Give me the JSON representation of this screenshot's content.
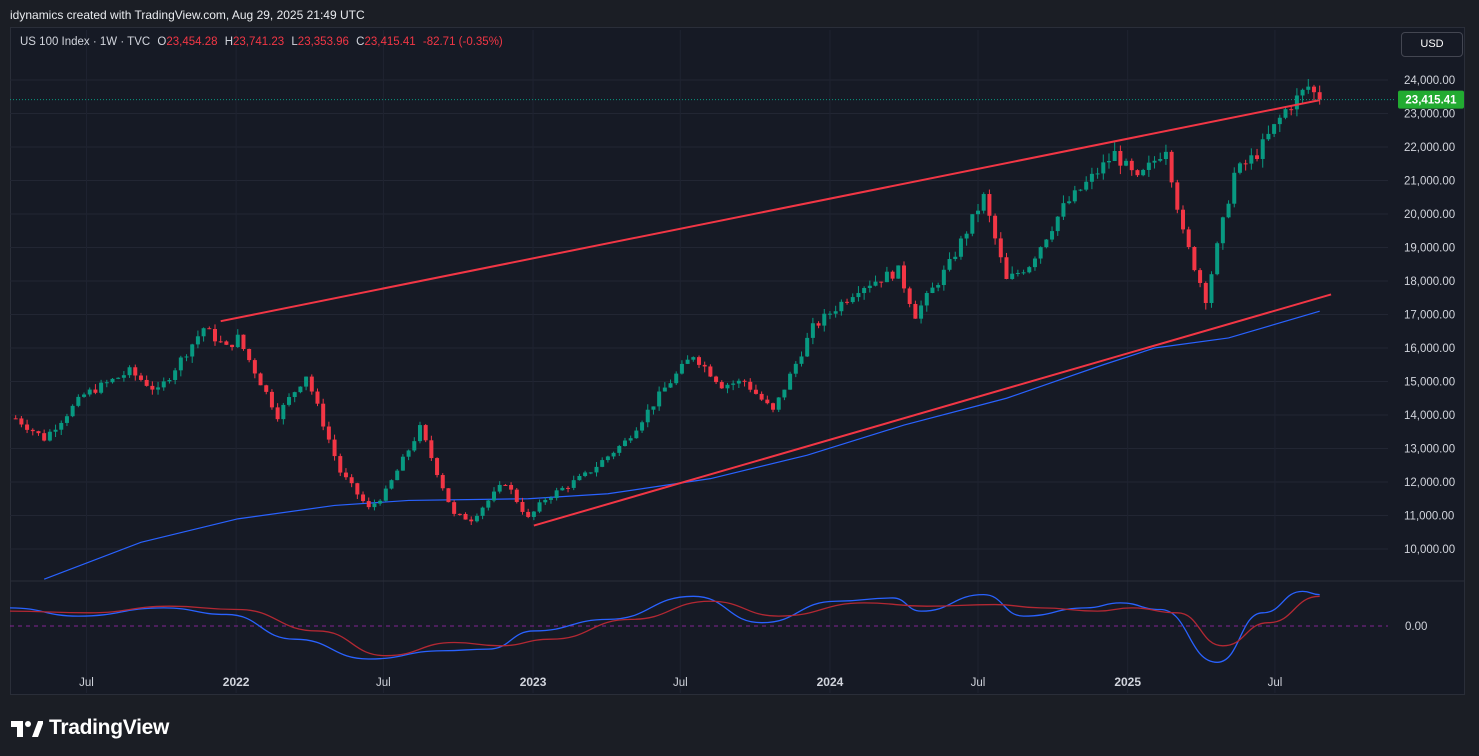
{
  "header": {
    "credit": "idynamics created with TradingView.com, Aug 29, 2025 21:49 UTC"
  },
  "legend": {
    "symbol": "US 100 Index · 1W · TVC",
    "open_label": "O",
    "open": "23,454.28",
    "high_label": "H",
    "high": "23,741.23",
    "low_label": "L",
    "low": "23,353.96",
    "close_label": "C",
    "close": "23,415.41",
    "change": "-82.71 (-0.35%)"
  },
  "currency": "USD",
  "last_price_tag": "23,415.41",
  "oscillator_zero_label": "0.00",
  "brand": "TradingView",
  "colors": {
    "up": "#089981",
    "down": "#f23645",
    "trendline": "#f23645",
    "ma": "#2962ff",
    "price_tag": "#089981",
    "osc_line1": "#2962ff",
    "osc_line2": "#b22833"
  },
  "chart_data": {
    "type": "candlestick",
    "interval": "1W",
    "y_ticks": [
      "24,000.00",
      "23,000.00",
      "22,000.00",
      "21,000.00",
      "20,000.00",
      "19,000.00",
      "18,000.00",
      "17,000.00",
      "16,000.00",
      "15,000.00",
      "14,000.00",
      "13,000.00",
      "12,000.00",
      "11,000.00",
      "10,000.00"
    ],
    "ylim": [
      9000,
      24500
    ],
    "x_ticks": [
      "Jul",
      "2022",
      "Jul",
      "2023",
      "Jul",
      "2024",
      "Jul",
      "2025",
      "Jul"
    ],
    "xlim": [
      "2021-03-29",
      "2025-11-17"
    ],
    "price_path": [
      [
        "2021-04-05",
        13900
      ],
      [
        "2021-05-10",
        13300
      ],
      [
        "2021-06-28",
        14600
      ],
      [
        "2021-08-23",
        15300
      ],
      [
        "2021-09-27",
        14700
      ],
      [
        "2021-11-22",
        16600
      ],
      [
        "2021-12-20",
        16000
      ],
      [
        "2022-01-03",
        16300
      ],
      [
        "2022-02-21",
        14000
      ],
      [
        "2022-03-28",
        15200
      ],
      [
        "2022-05-09",
        12300
      ],
      [
        "2022-06-13",
        11200
      ],
      [
        "2022-07-04",
        11700
      ],
      [
        "2022-08-15",
        13600
      ],
      [
        "2022-09-26",
        11000
      ],
      [
        "2022-10-17",
        10900
      ],
      [
        "2022-11-28",
        12000
      ],
      [
        "2022-12-26",
        10900
      ],
      [
        "2023-01-16",
        11500
      ],
      [
        "2023-03-06",
        12200
      ],
      [
        "2023-04-24",
        13200
      ],
      [
        "2023-06-12",
        14800
      ],
      [
        "2023-07-17",
        15800
      ],
      [
        "2023-08-21",
        14900
      ],
      [
        "2023-09-18",
        15000
      ],
      [
        "2023-10-23",
        14100
      ],
      [
        "2023-12-11",
        16600
      ],
      [
        "2024-02-05",
        17800
      ],
      [
        "2024-03-25",
        18300
      ],
      [
        "2024-04-15",
        17000
      ],
      [
        "2024-05-27",
        18500
      ],
      [
        "2024-07-08",
        20500
      ],
      [
        "2024-08-05",
        18000
      ],
      [
        "2024-09-02",
        18500
      ],
      [
        "2024-10-14",
        20200
      ],
      [
        "2024-12-16",
        21800
      ],
      [
        "2025-01-13",
        21000
      ],
      [
        "2025-02-17",
        22000
      ],
      [
        "2025-03-10",
        19400
      ],
      [
        "2025-04-07",
        17500
      ],
      [
        "2025-04-21",
        19000
      ],
      [
        "2025-05-12",
        21200
      ],
      [
        "2025-06-09",
        21800
      ],
      [
        "2025-07-14",
        23100
      ],
      [
        "2025-08-11",
        23800
      ],
      [
        "2025-08-25",
        23415.41
      ]
    ],
    "moving_average": [
      [
        "2021-05-10",
        9100
      ],
      [
        "2021-09-06",
        10200
      ],
      [
        "2022-01-03",
        10900
      ],
      [
        "2022-05-02",
        11300
      ],
      [
        "2022-08-01",
        11450
      ],
      [
        "2022-12-26",
        11500
      ],
      [
        "2023-04-03",
        11650
      ],
      [
        "2023-08-07",
        12100
      ],
      [
        "2023-12-04",
        12800
      ],
      [
        "2024-04-01",
        13700
      ],
      [
        "2024-08-05",
        14500
      ],
      [
        "2024-12-02",
        15500
      ],
      [
        "2025-02-03",
        16000
      ],
      [
        "2025-05-05",
        16300
      ],
      [
        "2025-08-25",
        17100
      ]
    ],
    "trendlines": [
      {
        "from": [
          "2021-12-13",
          16800
        ],
        "to": [
          "2025-08-25",
          23400
        ]
      },
      {
        "from": [
          "2023-01-02",
          10700
        ],
        "to": [
          "2025-09-08",
          17600
        ]
      }
    ],
    "last_close": 23415.41,
    "oscillator": {
      "zero": 0,
      "fast": [
        [
          "2021-03-29",
          0.55
        ],
        [
          "2021-06-21",
          0.3
        ],
        [
          "2021-10-04",
          0.55
        ],
        [
          "2021-12-20",
          0.35
        ],
        [
          "2022-03-14",
          -0.4
        ],
        [
          "2022-06-13",
          -1.0
        ],
        [
          "2022-09-12",
          -0.75
        ],
        [
          "2022-11-07",
          -0.7
        ],
        [
          "2023-01-02",
          -0.15
        ],
        [
          "2023-04-03",
          0.2
        ],
        [
          "2023-07-17",
          0.9
        ],
        [
          "2023-10-09",
          0.1
        ],
        [
          "2024-01-08",
          0.75
        ],
        [
          "2024-03-18",
          0.85
        ],
        [
          "2024-04-22",
          0.45
        ],
        [
          "2024-07-08",
          0.95
        ],
        [
          "2024-08-26",
          0.3
        ],
        [
          "2024-11-11",
          0.55
        ],
        [
          "2024-12-23",
          0.7
        ],
        [
          "2025-02-10",
          0.5
        ],
        [
          "2025-04-21",
          -1.1
        ],
        [
          "2025-06-16",
          0.4
        ],
        [
          "2025-08-04",
          1.05
        ],
        [
          "2025-08-25",
          0.95
        ]
      ],
      "slow": [
        [
          "2021-03-29",
          0.45
        ],
        [
          "2021-07-05",
          0.4
        ],
        [
          "2021-10-11",
          0.6
        ],
        [
          "2022-01-03",
          0.5
        ],
        [
          "2022-04-11",
          -0.15
        ],
        [
          "2022-07-04",
          -0.9
        ],
        [
          "2022-09-26",
          -0.5
        ],
        [
          "2022-11-21",
          -0.6
        ],
        [
          "2023-01-23",
          -0.4
        ],
        [
          "2023-05-01",
          0.2
        ],
        [
          "2023-08-07",
          0.75
        ],
        [
          "2023-10-30",
          0.3
        ],
        [
          "2024-02-12",
          0.7
        ],
        [
          "2024-04-29",
          0.6
        ],
        [
          "2024-07-22",
          0.65
        ],
        [
          "2024-09-16",
          0.55
        ],
        [
          "2024-11-25",
          0.45
        ],
        [
          "2025-01-06",
          0.55
        ],
        [
          "2025-03-03",
          0.4
        ],
        [
          "2025-04-28",
          -0.6
        ],
        [
          "2025-06-23",
          0.1
        ],
        [
          "2025-08-25",
          0.9
        ]
      ]
    }
  }
}
